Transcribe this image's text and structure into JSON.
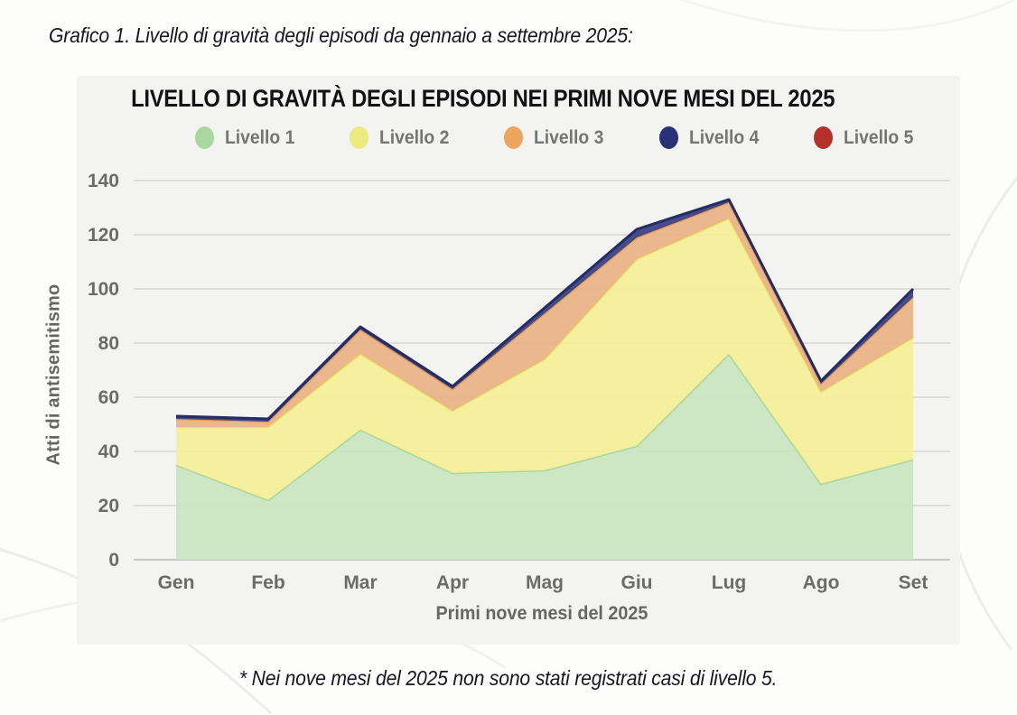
{
  "page": {
    "caption": "Grafico 1. Livello di gravità degli episodi da gennaio a settembre 2025:",
    "footnote": "* Nei nove mesi del 2025 non sono stati registrati casi di livello 5."
  },
  "chart": {
    "title": "LIVELLO DI GRAVITÀ DEGLI EPISODI NEI PRIMI NOVE MESI DEL 2025",
    "xlabel": "Primi nove mesi del 2025",
    "ylabel": "Atti di antisemitismo",
    "legend": [
      {
        "label": "Livello 1",
        "color": "#a9d7a0"
      },
      {
        "label": "Livello 2",
        "color": "#ece97e"
      },
      {
        "label": "Livello 3",
        "color": "#eca55e"
      },
      {
        "label": "Livello 4",
        "color": "#2b3178"
      },
      {
        "label": "Livello 5",
        "color": "#b23229"
      }
    ],
    "colors": {
      "grid": "#d8d8d5",
      "baseline": "#c6c6c4",
      "axis_text": "#6b6b6b",
      "title_text": "#121215"
    }
  },
  "chart_data": {
    "type": "area",
    "stacked": true,
    "title": "LIVELLO DI GRAVITÀ DEGLI EPISODI NEI PRIMI NOVE MESI DEL 2025",
    "xlabel": "Primi nove mesi del 2025",
    "ylabel": "Atti di antisemitismo",
    "categories": [
      "Gen",
      "Feb",
      "Mar",
      "Apr",
      "Mag",
      "Giu",
      "Lug",
      "Ago",
      "Set"
    ],
    "series": [
      {
        "name": "Livello 1",
        "values": [
          35,
          22,
          48,
          32,
          33,
          42,
          76,
          28,
          37
        ],
        "fill": "#c9e5bf",
        "line": "#a6d49b"
      },
      {
        "name": "Livello 2",
        "values": [
          14,
          27,
          28,
          23,
          41,
          69,
          50,
          34,
          45
        ],
        "fill": "#f5ef97",
        "line": "#e9e469"
      },
      {
        "name": "Livello 3",
        "values": [
          3,
          2,
          9,
          8,
          17,
          8,
          6,
          3,
          15
        ],
        "fill": "#eab183",
        "line": "#e19a58"
      },
      {
        "name": "Livello 4",
        "values": [
          1,
          1,
          1,
          1,
          2,
          3,
          1,
          1,
          3
        ],
        "fill": "#343b7e",
        "line": "#252b63"
      },
      {
        "name": "Livello 5",
        "values": [
          0,
          0,
          0,
          0,
          0,
          0,
          0,
          0,
          0
        ],
        "fill": "#b23229",
        "line": "#b23229"
      }
    ],
    "stacked_totals": [
      53,
      52,
      86,
      64,
      93,
      122,
      133,
      66,
      100
    ],
    "yticks": [
      0,
      20,
      40,
      60,
      80,
      100,
      120,
      140
    ],
    "ylim": [
      0,
      145
    ],
    "grid": true,
    "legend_position": "top"
  }
}
